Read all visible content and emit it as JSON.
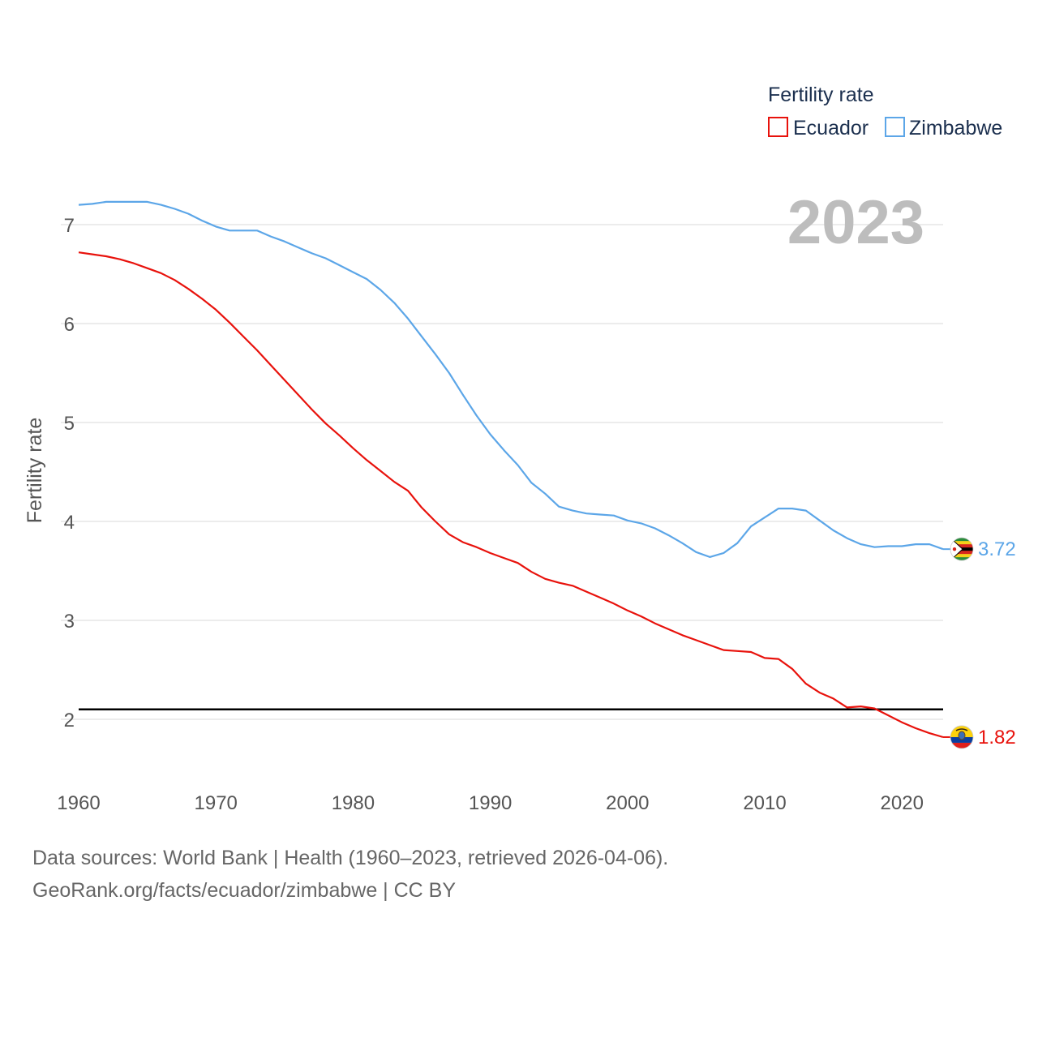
{
  "chart_data": {
    "type": "line",
    "ylabel": "Fertility rate",
    "xlabel": "",
    "xlim": [
      1960,
      2023
    ],
    "ylim": [
      1.5,
      7.5
    ],
    "x_ticks": [
      1960,
      1970,
      1980,
      1990,
      2000,
      2010,
      2020
    ],
    "y_ticks": [
      2,
      3,
      4,
      5,
      6,
      7
    ],
    "legend": {
      "title": "Fertility rate",
      "position": "top-right",
      "entries": [
        "Ecuador",
        "Zimbabwe"
      ]
    },
    "current_year_label": "2023",
    "reference_line": {
      "y": 2.1
    },
    "series": [
      {
        "name": "Ecuador",
        "color": "#e8120c",
        "end_label": "1.82",
        "flag": "ecuador-flag",
        "x": [
          1960,
          1961,
          1962,
          1963,
          1964,
          1965,
          1966,
          1967,
          1968,
          1969,
          1970,
          1971,
          1972,
          1973,
          1974,
          1975,
          1976,
          1977,
          1978,
          1979,
          1980,
          1981,
          1982,
          1983,
          1984,
          1985,
          1986,
          1987,
          1988,
          1989,
          1990,
          1991,
          1992,
          1993,
          1994,
          1995,
          1996,
          1997,
          1998,
          1999,
          2000,
          2001,
          2002,
          2003,
          2004,
          2005,
          2006,
          2007,
          2008,
          2009,
          2010,
          2011,
          2012,
          2013,
          2014,
          2015,
          2016,
          2017,
          2018,
          2019,
          2020,
          2021,
          2022,
          2023
        ],
        "values": [
          6.72,
          6.7,
          6.68,
          6.65,
          6.61,
          6.56,
          6.51,
          6.44,
          6.35,
          6.25,
          6.14,
          6.01,
          5.87,
          5.73,
          5.58,
          5.43,
          5.28,
          5.13,
          4.99,
          4.87,
          4.74,
          4.62,
          4.51,
          4.4,
          4.31,
          4.14,
          4.0,
          3.87,
          3.79,
          3.74,
          3.68,
          3.63,
          3.58,
          3.49,
          3.42,
          3.38,
          3.35,
          3.29,
          3.23,
          3.17,
          3.1,
          3.04,
          2.97,
          2.91,
          2.85,
          2.8,
          2.75,
          2.7,
          2.69,
          2.68,
          2.62,
          2.61,
          2.51,
          2.36,
          2.27,
          2.21,
          2.12,
          2.13,
          2.11,
          2.04,
          1.97,
          1.91,
          1.86,
          1.82
        ]
      },
      {
        "name": "Zimbabwe",
        "color": "#5ca6e8",
        "end_label": "3.72",
        "flag": "zimbabwe-flag",
        "x": [
          1960,
          1961,
          1962,
          1963,
          1964,
          1965,
          1966,
          1967,
          1968,
          1969,
          1970,
          1971,
          1972,
          1973,
          1974,
          1975,
          1976,
          1977,
          1978,
          1979,
          1980,
          1981,
          1982,
          1983,
          1984,
          1985,
          1986,
          1987,
          1988,
          1989,
          1990,
          1991,
          1992,
          1993,
          1994,
          1995,
          1996,
          1997,
          1998,
          1999,
          2000,
          2001,
          2002,
          2003,
          2004,
          2005,
          2006,
          2007,
          2008,
          2009,
          2010,
          2011,
          2012,
          2013,
          2014,
          2015,
          2016,
          2017,
          2018,
          2019,
          2020,
          2021,
          2022,
          2023
        ],
        "values": [
          7.2,
          7.21,
          7.23,
          7.23,
          7.23,
          7.23,
          7.2,
          7.16,
          7.11,
          7.04,
          6.98,
          6.94,
          6.94,
          6.94,
          6.88,
          6.83,
          6.77,
          6.71,
          6.66,
          6.59,
          6.52,
          6.45,
          6.34,
          6.21,
          6.05,
          5.87,
          5.69,
          5.5,
          5.28,
          5.07,
          4.88,
          4.72,
          4.57,
          4.39,
          4.28,
          4.15,
          4.11,
          4.08,
          4.07,
          4.06,
          4.01,
          3.98,
          3.93,
          3.86,
          3.78,
          3.69,
          3.64,
          3.68,
          3.78,
          3.95,
          4.04,
          4.13,
          4.13,
          4.11,
          4.01,
          3.91,
          3.83,
          3.77,
          3.74,
          3.75,
          3.75,
          3.77,
          3.77,
          3.72
        ]
      }
    ]
  },
  "footer": {
    "line1": "Data sources: World Bank | Health (1960–2023, retrieved 2026-04-06).",
    "line2": "GeoRank.org/facts/ecuador/zimbabwe | CC BY"
  }
}
